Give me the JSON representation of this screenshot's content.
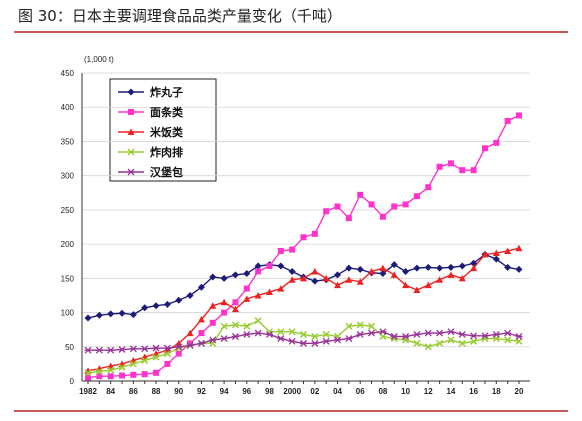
{
  "chart_data": {
    "type": "line",
    "title": "图 30：日本主要调理食品品类产量变化（千吨）",
    "y_unit": "(1,000 t)",
    "categories": [
      "1982",
      null,
      "84",
      null,
      "86",
      null,
      "88",
      null,
      "90",
      null,
      "92",
      null,
      "94",
      null,
      "96",
      null,
      "98",
      null,
      "2000",
      null,
      "02",
      null,
      "04",
      null,
      "06",
      null,
      "08",
      null,
      "10",
      null,
      "12",
      null,
      "14",
      null,
      "16",
      null,
      "18",
      null,
      "20"
    ],
    "ylim": [
      0,
      450
    ],
    "yticks": [
      0,
      50,
      100,
      150,
      200,
      250,
      300,
      350,
      400,
      450
    ],
    "grid": true,
    "legend": "top-left",
    "series": [
      {
        "name": "炸丸子",
        "color": "#1c1c78",
        "marker": "diamond",
        "values": [
          92,
          96,
          98,
          99,
          97,
          107,
          110,
          112,
          118,
          125,
          137,
          152,
          150,
          155,
          157,
          168,
          170,
          168,
          160,
          152,
          146,
          148,
          155,
          165,
          163,
          158,
          157,
          170,
          160,
          165,
          166,
          165,
          166,
          168,
          172,
          185,
          178,
          166,
          163
        ]
      },
      {
        "name": "面条类",
        "color": "#ff33cc",
        "marker": "square",
        "values": [
          5,
          7,
          7,
          8,
          9,
          10,
          12,
          25,
          40,
          55,
          70,
          85,
          100,
          115,
          135,
          160,
          168,
          190,
          192,
          210,
          215,
          248,
          255,
          238,
          272,
          258,
          240,
          255,
          258,
          270,
          283,
          313,
          318,
          308,
          308,
          340,
          348,
          380,
          388
        ]
      },
      {
        "name": "米饭类",
        "color": "#ee2222",
        "marker": "triangle",
        "values": [
          15,
          18,
          22,
          25,
          30,
          35,
          40,
          45,
          55,
          70,
          90,
          110,
          115,
          105,
          120,
          125,
          130,
          135,
          148,
          150,
          160,
          150,
          140,
          148,
          145,
          160,
          165,
          155,
          140,
          133,
          140,
          148,
          155,
          150,
          165,
          185,
          187,
          190,
          194
        ]
      },
      {
        "name": "炸肉排",
        "color": "#99cc33",
        "marker": "x",
        "values": [
          12,
          14,
          16,
          20,
          25,
          30,
          35,
          40,
          48,
          52,
          55,
          55,
          80,
          82,
          80,
          88,
          72,
          72,
          72,
          68,
          65,
          68,
          65,
          80,
          82,
          80,
          65,
          62,
          60,
          55,
          50,
          55,
          60,
          55,
          58,
          62,
          62,
          60,
          58
        ]
      },
      {
        "name": "汉堡包",
        "color": "#993399",
        "marker": "star",
        "values": [
          45,
          45,
          45,
          46,
          47,
          47,
          48,
          48,
          50,
          52,
          55,
          60,
          62,
          65,
          68,
          70,
          68,
          62,
          58,
          55,
          55,
          58,
          60,
          62,
          68,
          70,
          72,
          65,
          65,
          68,
          70,
          70,
          72,
          68,
          66,
          66,
          68,
          70,
          65
        ]
      }
    ]
  }
}
